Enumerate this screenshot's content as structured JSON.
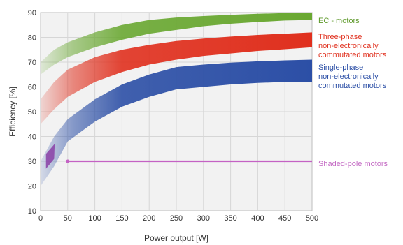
{
  "chart_data": {
    "type": "area",
    "title": "",
    "xlabel": "Power output [W]",
    "ylabel": "Efficiency [%]",
    "xlim": [
      0,
      500
    ],
    "ylim": [
      10,
      90
    ],
    "x_ticks": [
      "0",
      "50",
      "100",
      "150",
      "200",
      "250",
      "300",
      "350",
      "400",
      "450",
      "500"
    ],
    "y_ticks": [
      "10",
      "20",
      "30",
      "40",
      "50",
      "60",
      "70",
      "80",
      "90"
    ],
    "grid": true,
    "legend_placement": "right",
    "series": [
      {
        "name": "EC - motors",
        "color": "#6aa832",
        "x": [
          0,
          25,
          50,
          100,
          150,
          200,
          250,
          300,
          350,
          400,
          450,
          500
        ],
        "upper": [
          70,
          75,
          78,
          82,
          85,
          87,
          88,
          88.6,
          89.1,
          89.5,
          89.8,
          90
        ],
        "lower": [
          65,
          69,
          72,
          76,
          79,
          81.5,
          83,
          84.5,
          85.5,
          86.2,
          86.8,
          87
        ]
      },
      {
        "name": "Three-phase non-electronically commutated motors",
        "color": "#e0301e",
        "x": [
          0,
          25,
          50,
          100,
          150,
          200,
          250,
          300,
          350,
          400,
          450,
          500
        ],
        "upper": [
          55,
          62,
          67,
          72,
          75,
          77,
          78.5,
          79.5,
          80.3,
          81,
          81.5,
          82
        ],
        "lower": [
          45,
          51,
          56,
          62,
          66,
          69,
          71,
          72.5,
          73.5,
          74.5,
          75.2,
          76
        ]
      },
      {
        "name": "Single-phase non-electronically commutated motors",
        "color": "#2c4fa6",
        "x": [
          0,
          25,
          50,
          100,
          150,
          200,
          250,
          300,
          350,
          400,
          450,
          500
        ],
        "upper": [
          30,
          40,
          47,
          55,
          61,
          65,
          68,
          69,
          69.8,
          70.3,
          70.7,
          71
        ],
        "lower": [
          20,
          28,
          38,
          46,
          52,
          56,
          59,
          60,
          61,
          61.6,
          62,
          62
        ]
      },
      {
        "name": "Shaded-pole motors",
        "color": "#c462c4",
        "x": [
          0,
          50,
          500
        ],
        "upper": [
          34,
          30,
          30
        ],
        "lower": [
          28,
          30,
          30
        ]
      }
    ]
  },
  "legend": {
    "ec": "EC - motors",
    "three_phase": "Three-phase\nnon-electronically\ncommutated motors",
    "single_phase": "Single-phase\nnon-electronically\ncommutated motors",
    "shaded_pole": "Shaded-pole motors"
  }
}
